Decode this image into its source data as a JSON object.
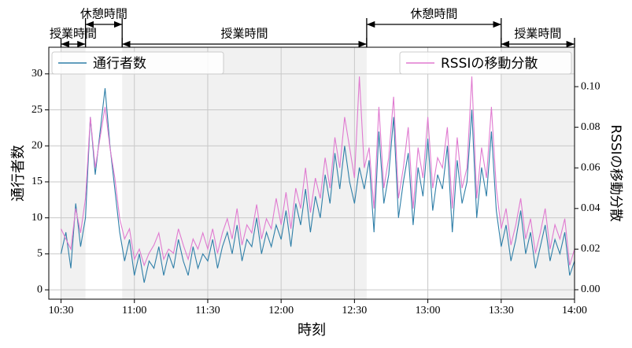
{
  "chart_data": {
    "type": "line",
    "xlabel": "時刻",
    "ylabel": "通行者数",
    "y2label": "RSSIの移動分散",
    "x": [
      "10:30",
      "10:32",
      "10:34",
      "10:36",
      "10:38",
      "10:40",
      "10:42",
      "10:44",
      "10:46",
      "10:48",
      "10:50",
      "10:52",
      "10:54",
      "10:56",
      "10:58",
      "11:00",
      "11:02",
      "11:04",
      "11:06",
      "11:08",
      "11:10",
      "11:12",
      "11:14",
      "11:16",
      "11:18",
      "11:20",
      "11:22",
      "11:24",
      "11:26",
      "11:28",
      "11:30",
      "11:32",
      "11:34",
      "11:36",
      "11:38",
      "11:40",
      "11:42",
      "11:44",
      "11:46",
      "11:48",
      "11:50",
      "11:52",
      "11:54",
      "11:56",
      "11:58",
      "12:00",
      "12:02",
      "12:04",
      "12:06",
      "12:08",
      "12:10",
      "12:12",
      "12:14",
      "12:16",
      "12:18",
      "12:20",
      "12:22",
      "12:24",
      "12:26",
      "12:28",
      "12:30",
      "12:32",
      "12:34",
      "12:36",
      "12:38",
      "12:40",
      "12:42",
      "12:44",
      "12:46",
      "12:48",
      "12:50",
      "12:52",
      "12:54",
      "12:56",
      "12:58",
      "13:00",
      "13:02",
      "13:04",
      "13:06",
      "13:08",
      "13:10",
      "13:12",
      "13:14",
      "13:16",
      "13:18",
      "13:20",
      "13:22",
      "13:24",
      "13:26",
      "13:28",
      "13:30",
      "13:32",
      "13:34",
      "13:36",
      "13:38",
      "13:40",
      "13:42",
      "13:44",
      "13:46",
      "13:48",
      "13:50",
      "13:52",
      "13:54",
      "13:56",
      "13:58",
      "14:00"
    ],
    "series": [
      {
        "name": "通行者数",
        "color": "#2f7fa8",
        "values": [
          5,
          8,
          3,
          12,
          6,
          10,
          24,
          16,
          22,
          28,
          20,
          14,
          8,
          4,
          7,
          2,
          5,
          1,
          4,
          3,
          6,
          2,
          5,
          3,
          7,
          4,
          2,
          6,
          3,
          5,
          4,
          7,
          3,
          6,
          8,
          5,
          9,
          4,
          7,
          6,
          10,
          5,
          8,
          6,
          9,
          7,
          11,
          6,
          12,
          9,
          14,
          8,
          13,
          10,
          16,
          12,
          19,
          14,
          20,
          15,
          12,
          17,
          14,
          18,
          8,
          22,
          12,
          16,
          24,
          10,
          15,
          19,
          9,
          17,
          13,
          21,
          11,
          16,
          14,
          20,
          8,
          18,
          12,
          15,
          25,
          10,
          17,
          13,
          22,
          11,
          6,
          9,
          4,
          7,
          11,
          5,
          8,
          3,
          6,
          9,
          4,
          7,
          5,
          8,
          2,
          4
        ]
      },
      {
        "name": "RSSIの移動分散",
        "color": "#e07ad0",
        "axis": "y2",
        "values": [
          0.03,
          0.025,
          0.02,
          0.04,
          0.028,
          0.045,
          0.085,
          0.06,
          0.075,
          0.09,
          0.07,
          0.055,
          0.035,
          0.025,
          0.03,
          0.015,
          0.02,
          0.012,
          0.018,
          0.022,
          0.028,
          0.015,
          0.02,
          0.018,
          0.03,
          0.022,
          0.015,
          0.025,
          0.02,
          0.028,
          0.02,
          0.03,
          0.018,
          0.028,
          0.035,
          0.025,
          0.04,
          0.022,
          0.032,
          0.028,
          0.042,
          0.025,
          0.035,
          0.03,
          0.045,
          0.032,
          0.048,
          0.03,
          0.05,
          0.04,
          0.06,
          0.038,
          0.055,
          0.045,
          0.065,
          0.05,
          0.075,
          0.06,
          0.085,
          0.07,
          0.055,
          0.105,
          0.06,
          0.07,
          0.04,
          0.09,
          0.05,
          0.065,
          0.095,
          0.045,
          0.06,
          0.08,
          0.04,
          0.07,
          0.055,
          0.085,
          0.05,
          0.065,
          0.06,
          0.08,
          0.04,
          0.075,
          0.05,
          0.06,
          0.105,
          0.045,
          0.07,
          0.055,
          0.09,
          0.05,
          0.03,
          0.04,
          0.022,
          0.032,
          0.045,
          0.025,
          0.035,
          0.018,
          0.028,
          0.04,
          0.02,
          0.032,
          0.025,
          0.035,
          0.012,
          0.02
        ]
      }
    ],
    "xlim": [
      "10:25",
      "14:00"
    ],
    "xticks": [
      "10:30",
      "11:00",
      "11:30",
      "12:00",
      "12:30",
      "13:00",
      "13:30",
      "14:00"
    ],
    "ylim": [
      -1.3,
      33.7
    ],
    "yticks": [
      0,
      5,
      10,
      15,
      20,
      25,
      30
    ],
    "y2lim": [
      -0.00465,
      0.1194
    ],
    "y2ticks": [
      {
        "value": 0,
        "label": "0.00"
      },
      {
        "value": 0.02,
        "label": "0.02"
      },
      {
        "value": 0.04,
        "label": "0.04"
      },
      {
        "value": 0.06,
        "label": "0.06"
      },
      {
        "value": 0.08,
        "label": "0.08"
      },
      {
        "value": 0.1,
        "label": "0.10"
      }
    ],
    "grid": true,
    "legend": "upper left",
    "legend2": "upper right",
    "annotations": [
      {
        "label": "授業時間",
        "start": "10:30",
        "end": "10:40",
        "shaded": true
      },
      {
        "label": "休憩時間",
        "start": "10:40",
        "end": "10:55",
        "shaded": false
      },
      {
        "label": "授業時間",
        "start": "10:55",
        "end": "12:35",
        "shaded": true
      },
      {
        "label": "休憩時間",
        "start": "12:35",
        "end": "13:30",
        "shaded": false
      },
      {
        "label": "授業時間",
        "start": "13:30",
        "end": "14:00",
        "shaded": true
      }
    ]
  }
}
